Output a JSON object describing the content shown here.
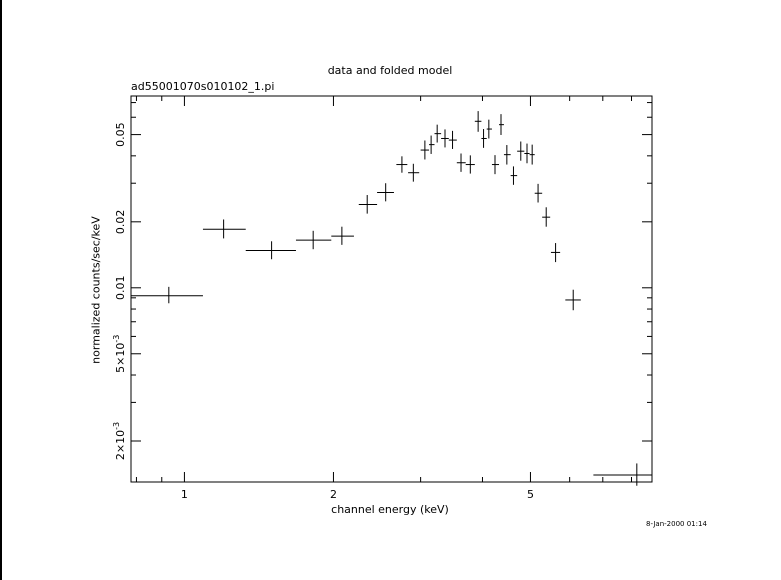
{
  "chart_data": {
    "type": "scatter",
    "title": "data and folded model",
    "subtitle": "ad55001070s010102_1.pi",
    "xlabel": "channel energy (keV)",
    "ylabel": "normalized counts/sec/keV",
    "timestamp": "8-Jan-2000 01:14",
    "x_scale": "log",
    "y_scale": "log",
    "xlim": [
      0.78,
      8.8
    ],
    "ylim": [
      0.0013,
      0.075
    ],
    "x_tick_labels": [
      "1",
      "2",
      "5"
    ],
    "y_tick_labels": [
      "2×10",
      "5×10",
      "0.01",
      "0.02",
      "0.05"
    ],
    "y_tick_exponents": [
      "-3",
      "-3",
      "",
      "",
      ""
    ],
    "points": [
      {
        "x": 0.93,
        "xlo": 0.78,
        "xhi": 1.09,
        "y": 0.0092,
        "ylo": 0.0085,
        "yhi": 0.0101
      },
      {
        "x": 1.2,
        "xlo": 1.09,
        "xhi": 1.33,
        "y": 0.0185,
        "ylo": 0.0168,
        "yhi": 0.0205
      },
      {
        "x": 1.5,
        "xlo": 1.33,
        "xhi": 1.68,
        "y": 0.0148,
        "ylo": 0.0135,
        "yhi": 0.0163
      },
      {
        "x": 1.82,
        "xlo": 1.68,
        "xhi": 1.98,
        "y": 0.0165,
        "ylo": 0.015,
        "yhi": 0.0182
      },
      {
        "x": 2.08,
        "xlo": 1.98,
        "xhi": 2.2,
        "y": 0.0172,
        "ylo": 0.0157,
        "yhi": 0.019
      },
      {
        "x": 2.34,
        "xlo": 2.25,
        "xhi": 2.45,
        "y": 0.024,
        "ylo": 0.0218,
        "yhi": 0.0265
      },
      {
        "x": 2.55,
        "xlo": 2.45,
        "xhi": 2.65,
        "y": 0.0272,
        "ylo": 0.0248,
        "yhi": 0.03
      },
      {
        "x": 2.75,
        "xlo": 2.68,
        "xhi": 2.82,
        "y": 0.0365,
        "ylo": 0.0335,
        "yhi": 0.0398
      },
      {
        "x": 2.9,
        "xlo": 2.83,
        "xhi": 2.98,
        "y": 0.0335,
        "ylo": 0.0305,
        "yhi": 0.0368
      },
      {
        "x": 3.06,
        "xlo": 3.0,
        "xhi": 3.12,
        "y": 0.0425,
        "ylo": 0.0385,
        "yhi": 0.047
      },
      {
        "x": 3.15,
        "xlo": 3.12,
        "xhi": 3.2,
        "y": 0.045,
        "ylo": 0.0408,
        "yhi": 0.0495
      },
      {
        "x": 3.24,
        "xlo": 3.2,
        "xhi": 3.3,
        "y": 0.0505,
        "ylo": 0.046,
        "yhi": 0.0555
      },
      {
        "x": 3.36,
        "xlo": 3.3,
        "xhi": 3.42,
        "y": 0.048,
        "ylo": 0.0437,
        "yhi": 0.0528
      },
      {
        "x": 3.48,
        "xlo": 3.42,
        "xhi": 3.55,
        "y": 0.0472,
        "ylo": 0.043,
        "yhi": 0.052
      },
      {
        "x": 3.62,
        "xlo": 3.55,
        "xhi": 3.7,
        "y": 0.0372,
        "ylo": 0.0338,
        "yhi": 0.041
      },
      {
        "x": 3.78,
        "xlo": 3.7,
        "xhi": 3.86,
        "y": 0.0365,
        "ylo": 0.0332,
        "yhi": 0.0402
      },
      {
        "x": 3.92,
        "xlo": 3.86,
        "xhi": 3.98,
        "y": 0.0575,
        "ylo": 0.0515,
        "yhi": 0.064
      },
      {
        "x": 4.02,
        "xlo": 3.98,
        "xhi": 4.08,
        "y": 0.048,
        "ylo": 0.0435,
        "yhi": 0.053
      },
      {
        "x": 4.12,
        "xlo": 4.08,
        "xhi": 4.18,
        "y": 0.053,
        "ylo": 0.048,
        "yhi": 0.0585
      },
      {
        "x": 4.24,
        "xlo": 4.18,
        "xhi": 4.32,
        "y": 0.0365,
        "ylo": 0.033,
        "yhi": 0.0403
      },
      {
        "x": 4.36,
        "xlo": 4.32,
        "xhi": 4.42,
        "y": 0.0555,
        "ylo": 0.0498,
        "yhi": 0.062
      },
      {
        "x": 4.48,
        "xlo": 4.42,
        "xhi": 4.56,
        "y": 0.0405,
        "ylo": 0.0365,
        "yhi": 0.0448
      },
      {
        "x": 4.62,
        "xlo": 4.56,
        "xhi": 4.7,
        "y": 0.0325,
        "ylo": 0.0295,
        "yhi": 0.0358
      },
      {
        "x": 4.78,
        "xlo": 4.7,
        "xhi": 4.86,
        "y": 0.042,
        "ylo": 0.038,
        "yhi": 0.0465
      },
      {
        "x": 4.92,
        "xlo": 4.86,
        "xhi": 4.98,
        "y": 0.041,
        "ylo": 0.037,
        "yhi": 0.0455
      },
      {
        "x": 5.04,
        "xlo": 4.98,
        "xhi": 5.1,
        "y": 0.0405,
        "ylo": 0.0365,
        "yhi": 0.045
      },
      {
        "x": 5.18,
        "xlo": 5.1,
        "xhi": 5.28,
        "y": 0.027,
        "ylo": 0.0245,
        "yhi": 0.0298
      },
      {
        "x": 5.38,
        "xlo": 5.28,
        "xhi": 5.48,
        "y": 0.021,
        "ylo": 0.019,
        "yhi": 0.0233
      },
      {
        "x": 5.62,
        "xlo": 5.5,
        "xhi": 5.74,
        "y": 0.0145,
        "ylo": 0.0131,
        "yhi": 0.016
      },
      {
        "x": 6.1,
        "xlo": 5.88,
        "xhi": 6.32,
        "y": 0.0088,
        "ylo": 0.0079,
        "yhi": 0.0098
      },
      {
        "x": 8.2,
        "xlo": 6.7,
        "xhi": 8.8,
        "y": 0.0014,
        "ylo": 0.00125,
        "yhi": 0.00158
      }
    ]
  }
}
